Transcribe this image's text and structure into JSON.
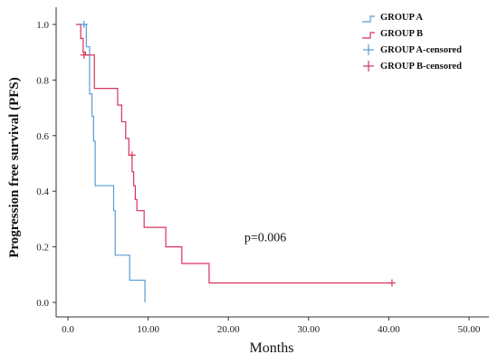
{
  "chart_data": {
    "type": "line",
    "xlabel": "Months",
    "ylabel": "Progression free survival (PFS)",
    "xlim": [
      0,
      50
    ],
    "ylim": [
      0,
      1.0
    ],
    "x_ticks": [
      "0.0",
      "10.00",
      "20.00",
      "30.00",
      "40.00",
      "50.00"
    ],
    "x_tick_values": [
      0,
      10,
      20,
      30,
      40,
      50
    ],
    "y_ticks": [
      "0.0",
      "0.2",
      "0.4",
      "0.6",
      "0.8",
      "1.0"
    ],
    "y_tick_values": [
      0,
      0.2,
      0.4,
      0.6,
      0.8,
      1.0
    ],
    "grid": false,
    "legend_position": "top-right",
    "annotation": "p=0.006",
    "annotation_at": [
      22,
      0.22
    ],
    "series": [
      {
        "name": "GROUP A",
        "color": "#5b9bd5",
        "step_x": [
          1.6,
          2.3,
          2.7,
          3.0,
          3.2,
          3.4,
          5.7,
          5.9,
          7.7,
          9.6,
          9.6
        ],
        "step_y": [
          1.0,
          0.92,
          0.75,
          0.67,
          0.58,
          0.42,
          0.33,
          0.17,
          0.08,
          0.0,
          0.0
        ],
        "start": [
          1.6,
          1.0
        ],
        "end_x": 9.6
      },
      {
        "name": "GROUP B",
        "color": "#d6335c",
        "step_x": [
          1.6,
          1.9,
          2.2,
          3.3,
          6.2,
          6.7,
          7.2,
          7.6,
          8.0,
          8.2,
          8.4,
          8.6,
          9.5,
          12.2,
          14.2,
          17.6
        ],
        "step_y": [
          0.95,
          0.9,
          0.89,
          0.77,
          0.71,
          0.65,
          0.59,
          0.53,
          0.47,
          0.42,
          0.37,
          0.33,
          0.27,
          0.2,
          0.14,
          0.07
        ],
        "start": [
          1.0,
          1.0
        ],
        "end_x": 40.4
      }
    ],
    "censored": [
      {
        "name": "GROUP A-censored",
        "color": "#5b9bd5",
        "points": [
          [
            2.0,
            1.0
          ]
        ]
      },
      {
        "name": "GROUP B-censored",
        "color": "#d6335c",
        "points": [
          [
            2.0,
            0.89
          ],
          [
            8.0,
            0.53
          ],
          [
            40.4,
            0.07
          ]
        ]
      }
    ]
  }
}
